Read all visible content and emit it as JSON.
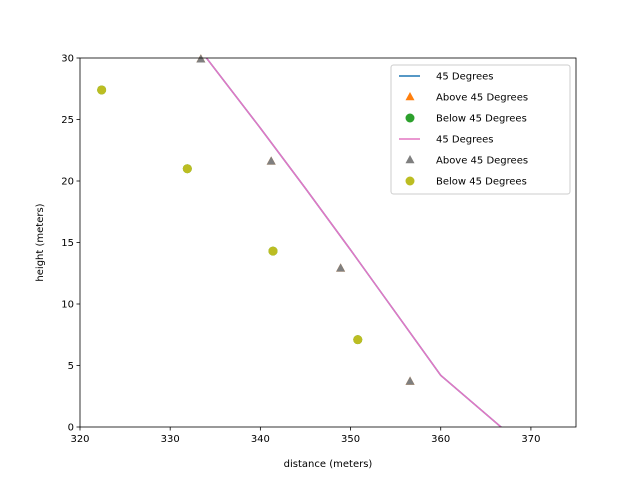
{
  "chart_data": {
    "type": "scatter",
    "title": "",
    "xlabel": "distance (meters)",
    "ylabel": "height (meters)",
    "xlim": [
      320,
      375
    ],
    "ylim": [
      0,
      30
    ],
    "xticks": [
      320,
      330,
      340,
      350,
      360,
      370
    ],
    "yticks": [
      0,
      5,
      10,
      15,
      20,
      25,
      30
    ],
    "grid": false,
    "legend_position": "top-right",
    "series": [
      {
        "name": "45 Degrees",
        "kind": "line",
        "color": "#1f77b4",
        "x": [
          333.5,
          340,
          345,
          350,
          355,
          360,
          367
        ],
        "y": [
          30.5,
          24.3,
          19.4,
          14.4,
          9.3,
          4.2,
          -0.2
        ]
      },
      {
        "name": "Above 45 Degrees",
        "kind": "marker",
        "marker": "triangle",
        "color": "#ff7f0e",
        "x": [
          333.4,
          341.2,
          348.9,
          356.6
        ],
        "y": [
          29.9,
          21.6,
          12.9,
          3.7
        ]
      },
      {
        "name": "Below 45 Degrees",
        "kind": "marker",
        "marker": "circle",
        "color": "#2ca02c",
        "x": [
          322.4,
          331.9,
          341.4,
          350.8
        ],
        "y": [
          27.4,
          21.0,
          14.3,
          7.1
        ]
      },
      {
        "name": "45 Degrees",
        "kind": "line",
        "color": "#e377c2",
        "x": [
          333.5,
          340,
          345,
          350,
          355,
          360,
          367
        ],
        "y": [
          30.5,
          24.3,
          19.4,
          14.4,
          9.3,
          4.2,
          -0.2
        ]
      },
      {
        "name": "Above 45 Degrees",
        "kind": "marker",
        "marker": "triangle",
        "color": "#7f7f7f",
        "x": [
          333.4,
          341.2,
          348.9,
          356.6
        ],
        "y": [
          29.9,
          21.6,
          12.9,
          3.7
        ]
      },
      {
        "name": "Below 45 Degrees",
        "kind": "marker",
        "marker": "circle",
        "color": "#bcbd22",
        "x": [
          322.4,
          331.9,
          341.4,
          350.8
        ],
        "y": [
          27.4,
          21.0,
          14.3,
          7.1
        ]
      }
    ]
  }
}
